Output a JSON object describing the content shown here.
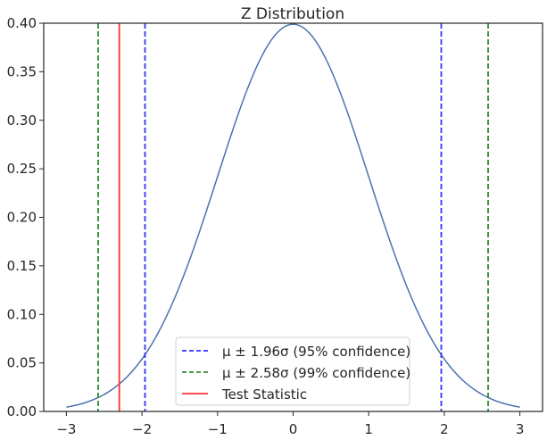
{
  "chart_data": {
    "type": "line",
    "title": "Z Distribution",
    "xlabel": "",
    "ylabel": "",
    "xlim": [
      -3.3,
      3.3
    ],
    "ylim": [
      0,
      0.4
    ],
    "xticks": [
      -3,
      -2,
      -1,
      0,
      1,
      2,
      3
    ],
    "xtick_labels": [
      "−3",
      "−2",
      "−1",
      "0",
      "1",
      "2",
      "3"
    ],
    "yticks": [
      0,
      0.05,
      0.1,
      0.15,
      0.2,
      0.25,
      0.3,
      0.35,
      0.4
    ],
    "ytick_labels": [
      "0.00",
      "0.05",
      "0.10",
      "0.15",
      "0.20",
      "0.25",
      "0.30",
      "0.35",
      "0.40"
    ],
    "grid": false,
    "curve": {
      "name": "Standard normal PDF",
      "x_range": [
        -3,
        3
      ],
      "mean": 0,
      "std": 1,
      "color": "#4c72b0"
    },
    "vlines": [
      {
        "x": -1.96,
        "color": "#3333ff",
        "style": "dashed",
        "legend": 0
      },
      {
        "x": 1.96,
        "color": "#3333ff",
        "style": "dashed",
        "legend": 0
      },
      {
        "x": -2.58,
        "color": "#2e8b2e",
        "style": "dashed",
        "legend": 1
      },
      {
        "x": 2.58,
        "color": "#2e8b2e",
        "style": "dashed",
        "legend": 1
      },
      {
        "x": -2.3,
        "color": "#ff3333",
        "style": "solid",
        "legend": 2
      }
    ],
    "legend": {
      "placement": "lower-center",
      "entries": [
        {
          "label": "μ ± 1.96σ (95% confidence)",
          "color": "#3333ff",
          "style": "dashed"
        },
        {
          "label": "μ ± 2.58σ (99% confidence)",
          "color": "#2e8b2e",
          "style": "dashed"
        },
        {
          "label": "Test Statistic",
          "color": "#ff3333",
          "style": "solid"
        }
      ]
    }
  }
}
